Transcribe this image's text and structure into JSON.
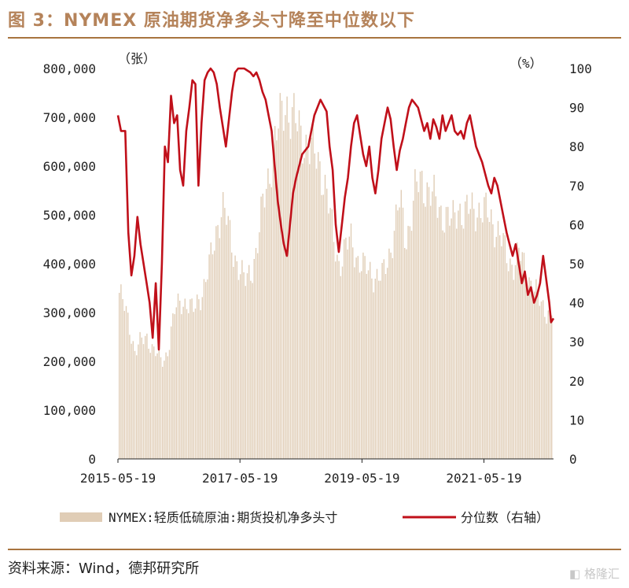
{
  "header": {
    "title": "图 3：NYMEX 原油期货净多头寸降至中位数以下"
  },
  "footer": {
    "source": "资料来源：Wind，德邦研究所",
    "watermark": "格隆汇"
  },
  "colors": {
    "title": "#b5835a",
    "rule": "#a8743f",
    "bars": "#e0cdb6",
    "line": "#c0101a"
  },
  "chart_data": {
    "type": "bar+line",
    "title": "NYMEX 原油期货净多头寸降至中位数以下",
    "y_left_unit": "（张）",
    "y_right_unit": "（%）",
    "ylim_left": [
      0,
      800000
    ],
    "ylim_right": [
      0,
      100
    ],
    "y_left_ticks": [
      "0",
      "100,000",
      "200,000",
      "300,000",
      "400,000",
      "500,000",
      "600,000",
      "700,000",
      "800,000"
    ],
    "y_right_ticks": [
      "0",
      "10",
      "20",
      "30",
      "40",
      "50",
      "60",
      "70",
      "80",
      "90",
      "100"
    ],
    "x_range": [
      2015.38,
      2022.52
    ],
    "x_ticks": [
      {
        "label": "2015-05-19",
        "t": 2015.38
      },
      {
        "label": "2017-05-19",
        "t": 2017.38
      },
      {
        "label": "2019-05-19",
        "t": 2019.38
      },
      {
        "label": "2021-05-19",
        "t": 2021.38
      }
    ],
    "legend": [
      "NYMEX:轻质低硫原油:期货投机净多头寸",
      "分位数（右轴）"
    ],
    "series": [
      {
        "name": "NYMEX:轻质低硫原油:期货投机净多头寸",
        "kind": "bar",
        "points": [
          [
            2015.38,
            345000
          ],
          [
            2015.45,
            320000
          ],
          [
            2015.55,
            280000
          ],
          [
            2015.65,
            220000
          ],
          [
            2015.75,
            240000
          ],
          [
            2015.85,
            250000
          ],
          [
            2015.95,
            225000
          ],
          [
            2016.05,
            205000
          ],
          [
            2016.12,
            200000
          ],
          [
            2016.2,
            230000
          ],
          [
            2016.3,
            300000
          ],
          [
            2016.4,
            325000
          ],
          [
            2016.5,
            320000
          ],
          [
            2016.6,
            300000
          ],
          [
            2016.7,
            330000
          ],
          [
            2016.8,
            360000
          ],
          [
            2016.9,
            410000
          ],
          [
            2017.0,
            480000
          ],
          [
            2017.08,
            520000
          ],
          [
            2017.15,
            490000
          ],
          [
            2017.25,
            430000
          ],
          [
            2017.35,
            395000
          ],
          [
            2017.45,
            360000
          ],
          [
            2017.55,
            385000
          ],
          [
            2017.65,
            430000
          ],
          [
            2017.75,
            520000
          ],
          [
            2017.85,
            590000
          ],
          [
            2017.95,
            650000
          ],
          [
            2018.05,
            700000
          ],
          [
            2018.12,
            735000
          ],
          [
            2018.2,
            710000
          ],
          [
            2018.3,
            680000
          ],
          [
            2018.4,
            660000
          ],
          [
            2018.5,
            640000
          ],
          [
            2018.6,
            620000
          ],
          [
            2018.7,
            600000
          ],
          [
            2018.8,
            540000
          ],
          [
            2018.9,
            450000
          ],
          [
            2019.0,
            400000
          ],
          [
            2019.1,
            430000
          ],
          [
            2019.2,
            450000
          ],
          [
            2019.3,
            410000
          ],
          [
            2019.4,
            390000
          ],
          [
            2019.5,
            385000
          ],
          [
            2019.6,
            375000
          ],
          [
            2019.7,
            370000
          ],
          [
            2019.8,
            410000
          ],
          [
            2019.9,
            470000
          ],
          [
            2020.0,
            530000
          ],
          [
            2020.08,
            450000
          ],
          [
            2020.15,
            480000
          ],
          [
            2020.25,
            550000
          ],
          [
            2020.35,
            570000
          ],
          [
            2020.45,
            555000
          ],
          [
            2020.55,
            530000
          ],
          [
            2020.65,
            510000
          ],
          [
            2020.75,
            500000
          ],
          [
            2020.85,
            480000
          ],
          [
            2020.95,
            520000
          ],
          [
            2021.05,
            500000
          ],
          [
            2021.15,
            510000
          ],
          [
            2021.25,
            515000
          ],
          [
            2021.35,
            505000
          ],
          [
            2021.45,
            500000
          ],
          [
            2021.55,
            480000
          ],
          [
            2021.65,
            450000
          ],
          [
            2021.75,
            410000
          ],
          [
            2021.85,
            400000
          ],
          [
            2021.95,
            420000
          ],
          [
            2022.05,
            390000
          ],
          [
            2022.15,
            360000
          ],
          [
            2022.25,
            330000
          ],
          [
            2022.35,
            310000
          ],
          [
            2022.45,
            300000
          ],
          [
            2022.5,
            305000
          ]
        ]
      },
      {
        "name": "分位数（右轴）",
        "kind": "line",
        "points": [
          [
            2015.38,
            88
          ],
          [
            2015.43,
            84
          ],
          [
            2015.5,
            84
          ],
          [
            2015.55,
            58
          ],
          [
            2015.6,
            47
          ],
          [
            2015.65,
            52
          ],
          [
            2015.7,
            62
          ],
          [
            2015.75,
            55
          ],
          [
            2015.8,
            50
          ],
          [
            2015.85,
            45
          ],
          [
            2015.9,
            40
          ],
          [
            2015.95,
            31
          ],
          [
            2016.0,
            45
          ],
          [
            2016.05,
            28
          ],
          [
            2016.1,
            50
          ],
          [
            2016.15,
            80
          ],
          [
            2016.2,
            76
          ],
          [
            2016.25,
            93
          ],
          [
            2016.3,
            86
          ],
          [
            2016.35,
            88
          ],
          [
            2016.4,
            74
          ],
          [
            2016.45,
            70
          ],
          [
            2016.5,
            84
          ],
          [
            2016.55,
            90
          ],
          [
            2016.6,
            97
          ],
          [
            2016.65,
            96
          ],
          [
            2016.7,
            70
          ],
          [
            2016.75,
            86
          ],
          [
            2016.8,
            97
          ],
          [
            2016.85,
            99
          ],
          [
            2016.9,
            100
          ],
          [
            2016.95,
            99
          ],
          [
            2017.0,
            96
          ],
          [
            2017.05,
            90
          ],
          [
            2017.1,
            85
          ],
          [
            2017.15,
            80
          ],
          [
            2017.2,
            87
          ],
          [
            2017.25,
            94
          ],
          [
            2017.3,
            99
          ],
          [
            2017.35,
            100
          ],
          [
            2017.45,
            100
          ],
          [
            2017.55,
            99
          ],
          [
            2017.6,
            98
          ],
          [
            2017.65,
            99
          ],
          [
            2017.7,
            97
          ],
          [
            2017.75,
            94
          ],
          [
            2017.8,
            92
          ],
          [
            2017.85,
            88
          ],
          [
            2017.9,
            84
          ],
          [
            2017.95,
            75
          ],
          [
            2018.0,
            66
          ],
          [
            2018.05,
            60
          ],
          [
            2018.1,
            55
          ],
          [
            2018.15,
            52
          ],
          [
            2018.2,
            60
          ],
          [
            2018.25,
            68
          ],
          [
            2018.3,
            72
          ],
          [
            2018.4,
            78
          ],
          [
            2018.5,
            80
          ],
          [
            2018.6,
            88
          ],
          [
            2018.7,
            92
          ],
          [
            2018.8,
            89
          ],
          [
            2018.85,
            80
          ],
          [
            2018.9,
            74
          ],
          [
            2018.95,
            60
          ],
          [
            2019.0,
            53
          ],
          [
            2019.05,
            60
          ],
          [
            2019.1,
            67
          ],
          [
            2019.15,
            72
          ],
          [
            2019.2,
            80
          ],
          [
            2019.25,
            86
          ],
          [
            2019.3,
            88
          ],
          [
            2019.35,
            83
          ],
          [
            2019.4,
            78
          ],
          [
            2019.45,
            75
          ],
          [
            2019.5,
            80
          ],
          [
            2019.55,
            72
          ],
          [
            2019.6,
            68
          ],
          [
            2019.65,
            74
          ],
          [
            2019.7,
            82
          ],
          [
            2019.75,
            86
          ],
          [
            2019.8,
            90
          ],
          [
            2019.85,
            87
          ],
          [
            2019.9,
            80
          ],
          [
            2019.95,
            74
          ],
          [
            2020.0,
            79
          ],
          [
            2020.05,
            82
          ],
          [
            2020.1,
            86
          ],
          [
            2020.15,
            90
          ],
          [
            2020.2,
            92
          ],
          [
            2020.25,
            91
          ],
          [
            2020.3,
            90
          ],
          [
            2020.35,
            87
          ],
          [
            2020.4,
            84
          ],
          [
            2020.45,
            86
          ],
          [
            2020.5,
            82
          ],
          [
            2020.55,
            87
          ],
          [
            2020.6,
            85
          ],
          [
            2020.65,
            82
          ],
          [
            2020.7,
            88
          ],
          [
            2020.75,
            84
          ],
          [
            2020.8,
            86
          ],
          [
            2020.85,
            88
          ],
          [
            2020.9,
            84
          ],
          [
            2020.95,
            83
          ],
          [
            2021.0,
            84
          ],
          [
            2021.05,
            82
          ],
          [
            2021.1,
            86
          ],
          [
            2021.15,
            88
          ],
          [
            2021.2,
            84
          ],
          [
            2021.25,
            80
          ],
          [
            2021.3,
            78
          ],
          [
            2021.35,
            76
          ],
          [
            2021.4,
            73
          ],
          [
            2021.45,
            70
          ],
          [
            2021.5,
            68
          ],
          [
            2021.55,
            72
          ],
          [
            2021.6,
            70
          ],
          [
            2021.65,
            66
          ],
          [
            2021.7,
            62
          ],
          [
            2021.75,
            58
          ],
          [
            2021.8,
            55
          ],
          [
            2021.85,
            52
          ],
          [
            2021.9,
            55
          ],
          [
            2021.95,
            50
          ],
          [
            2022.0,
            45
          ],
          [
            2022.05,
            48
          ],
          [
            2022.1,
            42
          ],
          [
            2022.15,
            44
          ],
          [
            2022.2,
            40
          ],
          [
            2022.25,
            42
          ],
          [
            2022.3,
            45
          ],
          [
            2022.35,
            52
          ],
          [
            2022.4,
            46
          ],
          [
            2022.45,
            40
          ],
          [
            2022.48,
            35
          ],
          [
            2022.52,
            36
          ]
        ]
      }
    ]
  }
}
